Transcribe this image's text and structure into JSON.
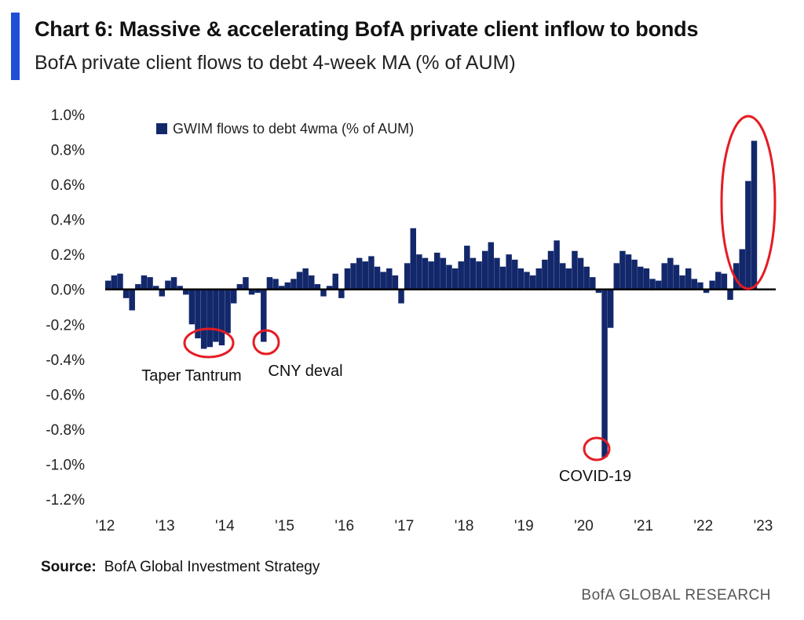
{
  "header": {
    "title": "Chart 6: Massive & accelerating BofA private client inflow to bonds",
    "subtitle": "BofA private client flows to debt 4-week MA (% of AUM)"
  },
  "source": {
    "label": "Source:",
    "text": "BofA Global Investment Strategy"
  },
  "footer": {
    "brand": "BofA GLOBAL RESEARCH"
  },
  "colors": {
    "bars": "#13286b",
    "highlight": "#e51c23",
    "accent": "#1f4ed8"
  },
  "chart_data": {
    "type": "bar",
    "title": "Chart 6: Massive & accelerating BofA private client inflow to bonds",
    "subtitle": "BofA private client flows to debt 4-week MA (% of AUM)",
    "ylim": [
      -1.2,
      1.0
    ],
    "yticks": [
      1.0,
      0.8,
      0.6,
      0.4,
      0.2,
      0.0,
      -0.2,
      -0.4,
      -0.6,
      -0.8,
      -1.0,
      -1.2
    ],
    "ytick_labels": [
      "1.0%",
      "0.8%",
      "0.6%",
      "0.4%",
      "0.2%",
      "0.0%",
      "-0.2%",
      "-0.4%",
      "-0.6%",
      "-0.8%",
      "-1.0%",
      "-1.2%"
    ],
    "xlim": [
      2012.0,
      2023.0
    ],
    "xticks": [
      2012,
      2013,
      2014,
      2015,
      2016,
      2017,
      2018,
      2019,
      2020,
      2021,
      2022,
      2023
    ],
    "xtick_labels": [
      "'12",
      "'13",
      "'14",
      "'15",
      "'16",
      "'17",
      "'18",
      "'19",
      "'20",
      "'21",
      "'22",
      "'23"
    ],
    "legend": {
      "position": "top-left"
    },
    "series": [
      {
        "name": "GWIM flows to debt 4wma (% of AUM)",
        "x": [
          2012.0,
          2012.1,
          2012.2,
          2012.3,
          2012.4,
          2012.5,
          2012.6,
          2012.7,
          2012.8,
          2012.9,
          2013.0,
          2013.1,
          2013.2,
          2013.3,
          2013.4,
          2013.5,
          2013.6,
          2013.7,
          2013.8,
          2013.9,
          2014.0,
          2014.1,
          2014.2,
          2014.3,
          2014.4,
          2014.5,
          2014.6,
          2014.7,
          2014.8,
          2014.9,
          2015.0,
          2015.1,
          2015.2,
          2015.3,
          2015.4,
          2015.5,
          2015.6,
          2015.7,
          2015.8,
          2015.9,
          2016.0,
          2016.1,
          2016.2,
          2016.3,
          2016.4,
          2016.5,
          2016.6,
          2016.7,
          2016.8,
          2016.9,
          2017.0,
          2017.1,
          2017.2,
          2017.3,
          2017.4,
          2017.5,
          2017.6,
          2017.7,
          2017.8,
          2017.9,
          2018.0,
          2018.1,
          2018.2,
          2018.3,
          2018.4,
          2018.5,
          2018.6,
          2018.7,
          2018.8,
          2018.9,
          2019.0,
          2019.1,
          2019.2,
          2019.3,
          2019.4,
          2019.5,
          2019.6,
          2019.7,
          2019.8,
          2019.9,
          2020.0,
          2020.1,
          2020.2,
          2020.3,
          2020.4,
          2020.5,
          2020.6,
          2020.7,
          2020.8,
          2020.9,
          2021.0,
          2021.1,
          2021.2,
          2021.3,
          2021.4,
          2021.5,
          2021.6,
          2021.7,
          2021.8,
          2021.9,
          2022.0,
          2022.1,
          2022.2,
          2022.3,
          2022.4,
          2022.5,
          2022.6,
          2022.7,
          2022.8
        ],
        "values": [
          0.05,
          0.08,
          0.09,
          -0.05,
          -0.12,
          0.03,
          0.08,
          0.07,
          0.02,
          -0.04,
          0.05,
          0.07,
          0.02,
          -0.03,
          -0.2,
          -0.28,
          -0.34,
          -0.33,
          -0.3,
          -0.32,
          -0.25,
          -0.08,
          0.03,
          0.07,
          -0.03,
          -0.02,
          -0.3,
          0.07,
          0.06,
          0.02,
          0.04,
          0.06,
          0.1,
          0.12,
          0.08,
          0.03,
          -0.04,
          0.02,
          0.09,
          -0.05,
          0.12,
          0.15,
          0.18,
          0.16,
          0.19,
          0.13,
          0.1,
          0.12,
          0.08,
          -0.08,
          0.15,
          0.35,
          0.2,
          0.18,
          0.16,
          0.21,
          0.18,
          0.14,
          0.12,
          0.16,
          0.25,
          0.18,
          0.16,
          0.22,
          0.27,
          0.18,
          0.13,
          0.2,
          0.17,
          0.12,
          0.1,
          0.08,
          0.12,
          0.17,
          0.22,
          0.28,
          0.15,
          0.12,
          0.22,
          0.18,
          0.13,
          0.07,
          -0.02,
          -0.96,
          -0.22,
          0.15,
          0.22,
          0.2,
          0.17,
          0.13,
          0.12,
          0.06,
          0.05,
          0.15,
          0.18,
          0.14,
          0.08,
          0.12,
          0.06,
          0.04,
          -0.02,
          0.05,
          0.1,
          0.09,
          -0.06,
          0.15,
          0.23,
          0.62,
          0.85
        ]
      }
    ],
    "annotations": [
      {
        "text": "Taper Tantrum",
        "x": 2013.8,
        "y": -0.3
      },
      {
        "text": "CNY deval",
        "x": 2014.75,
        "y": -0.3
      },
      {
        "text": "COVID-19",
        "x": 2020.25,
        "y": -0.9
      }
    ]
  }
}
